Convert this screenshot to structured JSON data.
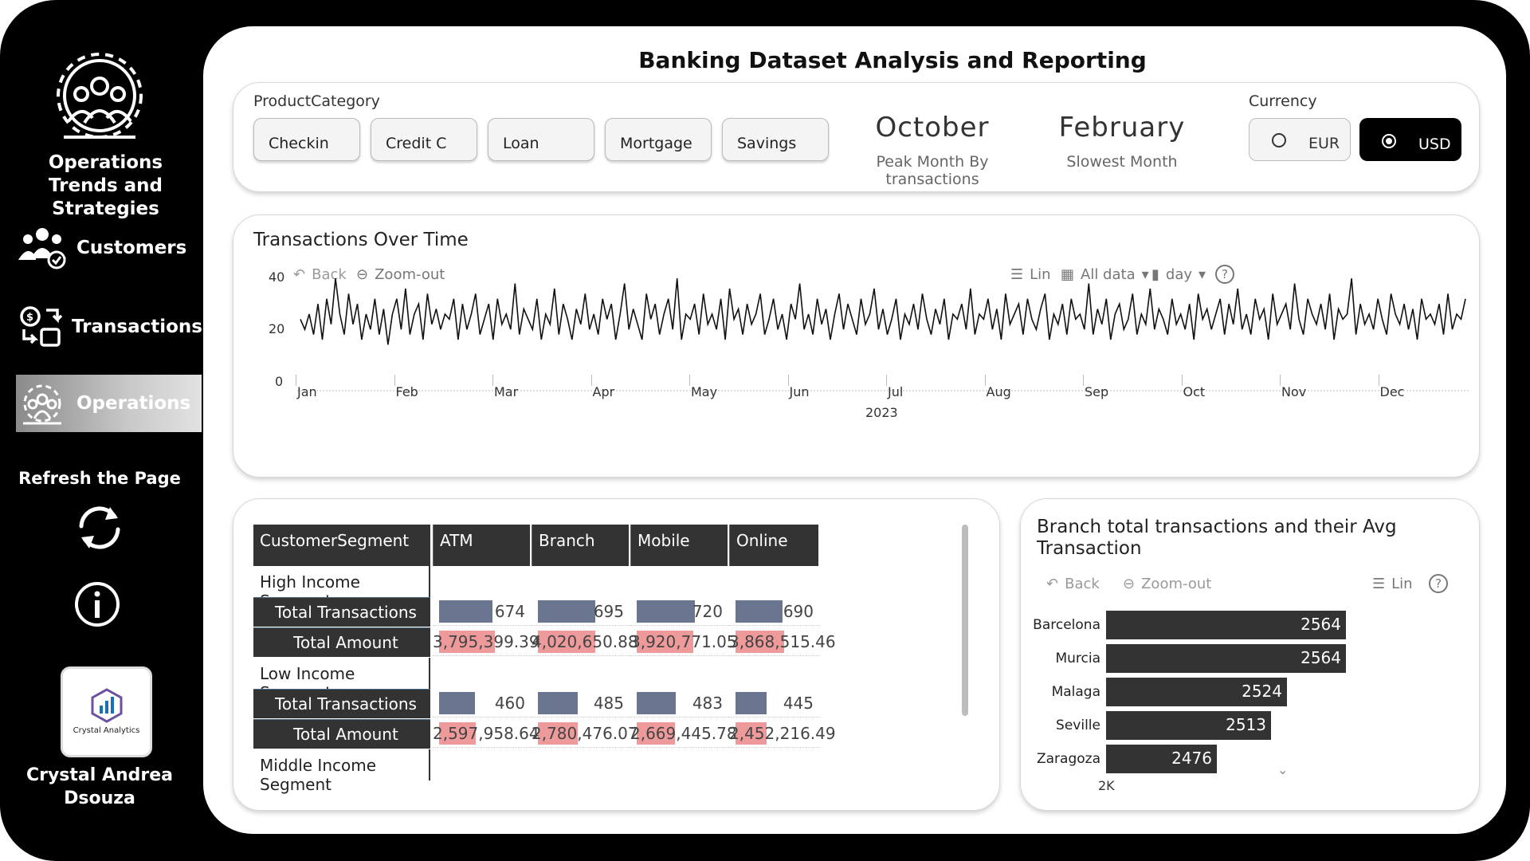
{
  "sidebar": {
    "brand": "Operations Trends and Strategies",
    "nav": [
      {
        "label": "Customers",
        "icon": "customers-icon"
      },
      {
        "label": "Transactions",
        "icon": "transactions-icon"
      },
      {
        "label": "Operations",
        "icon": "operations-icon",
        "active": true
      }
    ],
    "refresh_label": "Refresh the Page",
    "badge_text": "Crystal Analytics",
    "author": "Crystal Andrea Dsouza"
  },
  "page_title": "Banking Dataset Analysis and Reporting",
  "filters": {
    "product_label": "ProductCategory",
    "products": [
      "Checkin",
      "Credit C",
      "Loan",
      "Mortgage",
      "Savings"
    ],
    "peak_month": "October",
    "peak_label": "Peak Month By transactions",
    "slow_month": "February",
    "slow_label": "Slowest Month",
    "currency_label": "Currency",
    "currencies": [
      {
        "label": "EUR",
        "selected": false
      },
      {
        "label": "USD",
        "selected": true
      }
    ]
  },
  "line_card": {
    "title": "Transactions Over Time",
    "toolbar": {
      "back": "Back",
      "zoom_out": "Zoom-out",
      "lin": "Lin",
      "all_data": "All data",
      "day": "day",
      "help": "?"
    },
    "y_ticks": [
      "40",
      "20",
      "0"
    ],
    "x_ticks": [
      "Jan",
      "Feb",
      "Mar",
      "Apr",
      "May",
      "Jun",
      "Jul",
      "Aug",
      "Sep",
      "Oct",
      "Nov",
      "Dec"
    ],
    "x_year": "2023"
  },
  "matrix": {
    "headers": [
      "CustomerSegment",
      "ATM",
      "Branch",
      "Mobile",
      "Online"
    ],
    "segments": [
      {
        "name": "High Income Segment",
        "tx_label": "Total Transactions",
        "tx": [
          "674",
          "695",
          "720",
          "690"
        ],
        "tx_frac": [
          0.62,
          0.67,
          0.68,
          0.6
        ],
        "amt_label": "Total Amount",
        "amt": [
          "3,795,399.39",
          "4,020,650.88",
          "3,920,771.05",
          "3,868,515.46"
        ],
        "amt_frac": [
          0.65,
          0.67,
          0.66,
          0.62
        ]
      },
      {
        "name": "Low Income Segment",
        "tx_label": "Total Transactions",
        "tx": [
          "460",
          "485",
          "483",
          "445"
        ],
        "tx_frac": [
          0.42,
          0.46,
          0.45,
          0.4
        ],
        "amt_label": "Total Amount",
        "amt": [
          "2,597,958.64",
          "2,780,476.07",
          "2,669,445.78",
          "2,452,216.49"
        ],
        "amt_frac": [
          0.43,
          0.46,
          0.44,
          0.4
        ]
      },
      {
        "name": "Middle Income Segment"
      }
    ]
  },
  "branch_card": {
    "title": "Branch total transactions and their Avg Transaction",
    "toolbar": {
      "back": "Back",
      "zoom_out": "Zoom-out",
      "lin": "Lin",
      "help": "?"
    },
    "axis_tick": "2K"
  },
  "chart_data": {
    "type": "bar",
    "orientation": "horizontal",
    "title": "Branch total transactions and their Avg Transaction",
    "categories": [
      "Barcelona",
      "Murcia",
      "Malaga",
      "Seville",
      "Zaragoza"
    ],
    "values": [
      2564,
      2564,
      2524,
      2513,
      2476
    ],
    "value_labels": [
      "2564",
      "2564",
      "2524",
      "2513",
      "2476"
    ],
    "xlim": [
      2000,
      2600
    ]
  },
  "line_series": [
    28,
    24,
    30,
    22,
    34,
    20,
    36,
    26,
    44,
    30,
    22,
    38,
    26,
    34,
    20,
    30,
    24,
    36,
    22,
    32,
    18,
    30,
    36,
    24,
    40,
    22,
    30,
    34,
    20,
    38,
    26,
    32,
    24,
    30,
    28,
    36,
    20,
    34,
    24,
    30,
    38,
    22,
    28,
    34,
    20,
    36,
    26,
    30,
    24,
    42,
    22,
    32,
    28,
    24,
    36,
    20,
    30,
    26,
    40,
    22,
    34,
    28,
    20,
    32,
    26,
    38,
    24,
    30,
    22,
    36,
    28,
    34,
    20,
    30,
    42,
    24,
    32,
    26,
    20,
    38,
    28,
    34,
    22,
    30,
    36,
    24,
    44,
    20,
    30,
    28,
    34,
    22,
    38,
    26,
    30,
    24,
    36,
    20,
    40,
    28,
    32,
    22,
    34,
    26,
    30,
    38,
    22,
    28,
    36,
    24,
    30,
    20,
    34,
    28,
    42,
    24,
    30,
    22,
    36,
    26,
    32,
    20,
    30,
    38,
    24,
    34,
    28,
    22,
    36,
    26,
    30,
    40,
    24,
    32,
    22,
    28,
    36,
    20,
    30,
    26,
    34,
    24,
    38,
    28,
    22,
    32,
    26,
    36,
    20,
    30,
    28,
    34,
    24,
    40,
    22,
    30,
    28,
    36,
    24,
    32,
    20,
    38,
    26,
    30,
    34,
    22,
    36,
    28,
    24,
    32,
    38,
    20,
    30,
    26,
    34,
    22,
    36,
    28,
    30,
    24,
    42,
    22,
    32,
    26,
    36,
    20,
    30,
    34,
    24,
    28,
    38,
    22,
    30,
    26,
    40,
    24,
    32,
    28,
    22,
    36,
    26,
    30,
    24,
    34,
    20,
    38,
    28,
    32,
    24,
    30,
    36,
    22,
    34,
    26,
    40,
    24,
    30,
    22,
    36,
    28,
    32,
    20,
    38,
    26,
    30,
    34,
    24,
    42,
    28,
    22,
    36,
    30,
    26,
    34,
    24,
    38,
    20,
    32,
    28,
    30,
    44,
    22,
    34,
    26,
    30,
    24,
    36,
    28,
    22,
    38,
    30,
    26,
    34,
    24,
    32,
    20,
    36,
    28,
    30,
    26,
    34,
    22,
    38,
    24,
    30,
    28,
    36
  ]
}
